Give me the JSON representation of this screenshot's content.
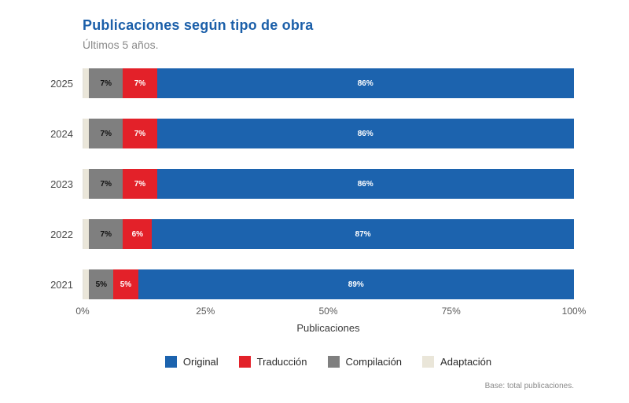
{
  "header": {
    "title": "Publicaciones según tipo de obra",
    "subtitle": "Últimos 5 años."
  },
  "chart_data": {
    "type": "bar",
    "orientation": "horizontal",
    "stacked": true,
    "categories": [
      "2025",
      "2024",
      "2023",
      "2022",
      "2021"
    ],
    "series": [
      {
        "name": "Adaptación",
        "color": "#eae6d9",
        "label_color": "#2a2a2a",
        "values": [
          1,
          1,
          1,
          1,
          1
        ],
        "labels": [
          "",
          "",
          "",
          "",
          ""
        ]
      },
      {
        "name": "Compilación",
        "color": "#7f7f7f",
        "label_color": "#111111",
        "values": [
          7,
          7,
          7,
          7,
          5
        ],
        "labels": [
          "7%",
          "7%",
          "7%",
          "7%",
          "5%"
        ]
      },
      {
        "name": "Traducción",
        "color": "#e32129",
        "label_color": "#ffffff",
        "values": [
          7,
          7,
          7,
          6,
          5
        ],
        "labels": [
          "7%",
          "7%",
          "7%",
          "6%",
          "5%"
        ]
      },
      {
        "name": "Original",
        "color": "#1c63ae",
        "label_color": "#ffffff",
        "values": [
          86,
          86,
          86,
          87,
          89
        ],
        "labels": [
          "86%",
          "86%",
          "86%",
          "87%",
          "89%"
        ]
      }
    ],
    "x_ticks": [
      "0%",
      "25%",
      "50%",
      "75%",
      "100%"
    ],
    "xlim": [
      0,
      100
    ],
    "xlabel": "Publicaciones",
    "legend": [
      {
        "label": "Original",
        "color": "#1c63ae"
      },
      {
        "label": "Traducción",
        "color": "#e32129"
      },
      {
        "label": "Compilación",
        "color": "#7f7f7f"
      },
      {
        "label": "Adaptación",
        "color": "#eae6d9"
      }
    ],
    "grid": false,
    "legend_position": "bottom"
  },
  "footer": {
    "note": "Base: total publicaciones."
  }
}
